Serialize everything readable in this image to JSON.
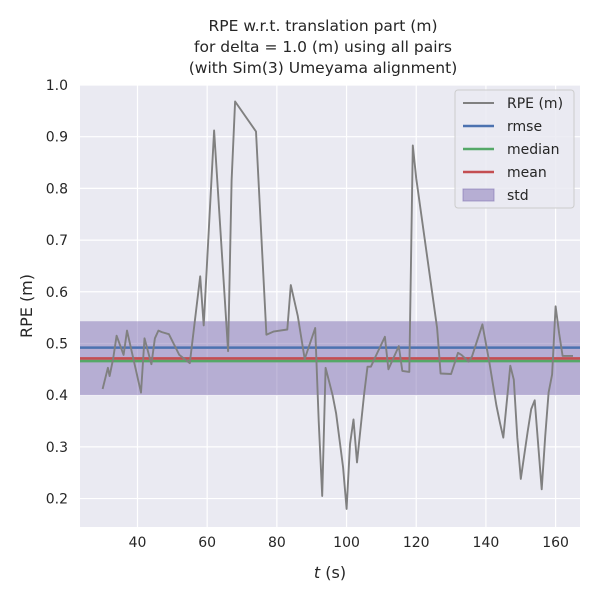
{
  "chart_data": {
    "type": "line",
    "title_lines": [
      "RPE w.r.t. translation part (m)",
      "for delta = 1.0 (m) using all pairs",
      "(with Sim(3) Umeyama alignment)"
    ],
    "xlabel_prefix": "t",
    "xlabel_suffix": " (s)",
    "ylabel": "RPE (m)",
    "xlim": [
      23.5,
      167
    ],
    "ylim": [
      0.145,
      1.0
    ],
    "xticks": [
      40,
      60,
      80,
      100,
      120,
      140,
      160
    ],
    "yticks": [
      0.2,
      0.3,
      0.4,
      0.5,
      0.6,
      0.7,
      0.8,
      0.9,
      1.0
    ],
    "grid": true,
    "legend_position": "top-right",
    "background": "#eaeaf2",
    "series": [
      {
        "name": "RPE (m)",
        "kind": "line",
        "color": "#808080",
        "x": [
          30,
          31.5,
          32,
          33,
          34,
          36,
          37,
          41,
          42,
          44,
          45,
          46,
          47,
          49,
          52,
          55,
          58,
          59,
          62,
          66,
          67,
          68,
          74,
          77,
          79,
          83,
          84,
          86,
          88,
          91,
          92,
          93,
          94,
          96,
          97,
          99,
          100,
          101,
          102,
          103,
          104,
          105,
          106,
          107,
          108,
          111,
          112,
          115,
          116,
          117,
          118,
          119,
          120,
          126,
          127,
          130,
          132,
          133,
          135,
          136,
          139,
          141,
          143,
          144,
          145,
          147,
          148,
          149,
          150,
          152,
          153,
          154,
          156,
          157,
          158,
          159,
          160,
          161,
          162,
          165
        ],
        "y": [
          0.412,
          0.453,
          0.437,
          0.47,
          0.515,
          0.478,
          0.525,
          0.405,
          0.51,
          0.46,
          0.51,
          0.525,
          0.522,
          0.518,
          0.478,
          0.462,
          0.63,
          0.535,
          0.912,
          0.485,
          0.815,
          0.968,
          0.91,
          0.517,
          0.523,
          0.527,
          0.613,
          0.553,
          0.47,
          0.53,
          0.35,
          0.205,
          0.453,
          0.4,
          0.365,
          0.26,
          0.18,
          0.305,
          0.353,
          0.27,
          0.335,
          0.4,
          0.455,
          0.455,
          0.47,
          0.513,
          0.45,
          0.495,
          0.447,
          0.446,
          0.445,
          0.883,
          0.82,
          0.53,
          0.442,
          0.441,
          0.482,
          0.478,
          0.465,
          0.475,
          0.537,
          0.463,
          0.38,
          0.347,
          0.318,
          0.457,
          0.43,
          0.318,
          0.238,
          0.33,
          0.373,
          0.39,
          0.218,
          0.32,
          0.405,
          0.44,
          0.572,
          0.52,
          0.476,
          0.476
        ]
      },
      {
        "name": "rmse",
        "kind": "hline",
        "color": "#4c72b0",
        "value": 0.492
      },
      {
        "name": "median",
        "kind": "hline",
        "color": "#55a868",
        "value": 0.466
      },
      {
        "name": "mean",
        "kind": "hline",
        "color": "#c44e52",
        "value": 0.471
      },
      {
        "name": "std",
        "kind": "band",
        "color": "#8172b3",
        "opacity": 0.5,
        "lower": 0.4,
        "upper": 0.543
      }
    ]
  }
}
